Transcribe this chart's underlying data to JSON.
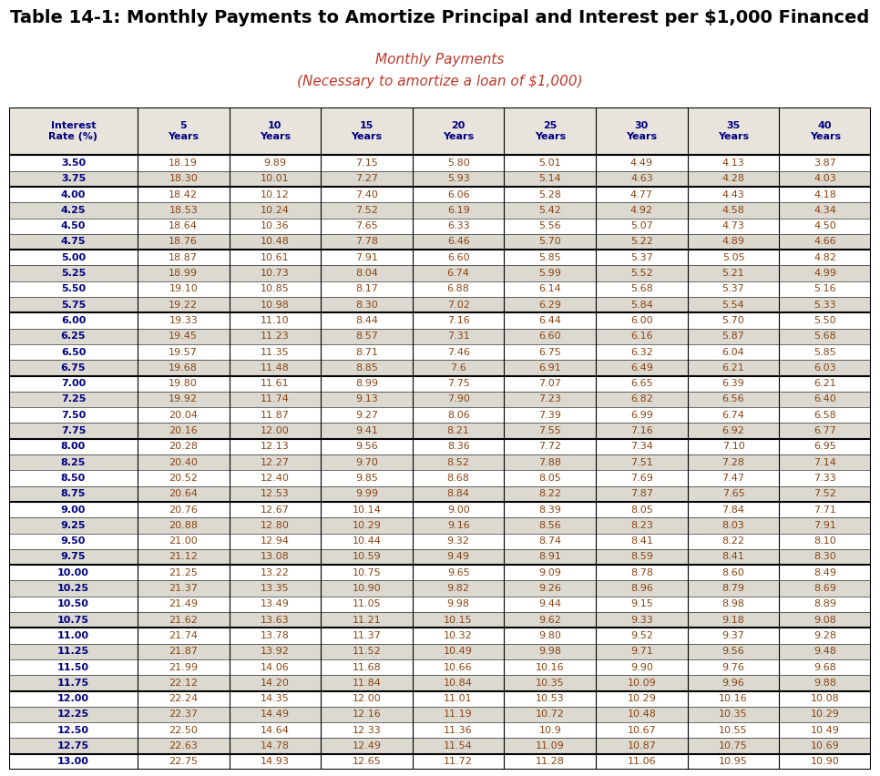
{
  "title": "Table 14-1: Monthly Payments to Amortize Principal and Interest per $1,000 Financed",
  "subtitle1": "Monthly Payments",
  "subtitle2": "(Necessary to amortize a loan of $1,000)",
  "col_headers": [
    "Interest\nRate (%)",
    "5\nYears",
    "10\nYears",
    "15\nYears",
    "20\nYears",
    "25\nYears",
    "30\nYears",
    "35\nYears",
    "40\nYears"
  ],
  "rows": [
    [
      "3.50",
      "18.19",
      "9.89",
      "7.15",
      "5.80",
      "5.01",
      "4.49",
      "4.13",
      "3.87"
    ],
    [
      "3.75",
      "18.30",
      "10.01",
      "7.27",
      "5.93",
      "5.14",
      "4.63",
      "4.28",
      "4.03"
    ],
    [
      "4.00",
      "18.42",
      "10.12",
      "7.40",
      "6.06",
      "5.28",
      "4.77",
      "4.43",
      "4.18"
    ],
    [
      "4.25",
      "18.53",
      "10.24",
      "7.52",
      "6.19",
      "5.42",
      "4.92",
      "4.58",
      "4.34"
    ],
    [
      "4.50",
      "18.64",
      "10.36",
      "7.65",
      "6.33",
      "5.56",
      "5.07",
      "4.73",
      "4.50"
    ],
    [
      "4.75",
      "18.76",
      "10.48",
      "7.78",
      "6.46",
      "5.70",
      "5.22",
      "4.89",
      "4.66"
    ],
    [
      "5.00",
      "18.87",
      "10.61",
      "7.91",
      "6.60",
      "5.85",
      "5.37",
      "5.05",
      "4.82"
    ],
    [
      "5.25",
      "18.99",
      "10.73",
      "8.04",
      "6.74",
      "5.99",
      "5.52",
      "5.21",
      "4.99"
    ],
    [
      "5.50",
      "19.10",
      "10.85",
      "8.17",
      "6.88",
      "6.14",
      "5.68",
      "5.37",
      "5.16"
    ],
    [
      "5.75",
      "19.22",
      "10.98",
      "8.30",
      "7.02",
      "6.29",
      "5.84",
      "5.54",
      "5.33"
    ],
    [
      "6.00",
      "19.33",
      "11.10",
      "8.44",
      "7.16",
      "6.44",
      "6.00",
      "5.70",
      "5.50"
    ],
    [
      "6.25",
      "19.45",
      "11.23",
      "8.57",
      "7.31",
      "6.60",
      "6.16",
      "5.87",
      "5.68"
    ],
    [
      "6.50",
      "19.57",
      "11.35",
      "8.71",
      "7.46",
      "6.75",
      "6.32",
      "6.04",
      "5.85"
    ],
    [
      "6.75",
      "19.68",
      "11.48",
      "8.85",
      "7.6",
      "6.91",
      "6.49",
      "6.21",
      "6.03"
    ],
    [
      "7.00",
      "19.80",
      "11.61",
      "8.99",
      "7.75",
      "7.07",
      "6.65",
      "6.39",
      "6.21"
    ],
    [
      "7.25",
      "19.92",
      "11.74",
      "9.13",
      "7.90",
      "7.23",
      "6.82",
      "6.56",
      "6.40"
    ],
    [
      "7.50",
      "20.04",
      "11.87",
      "9.27",
      "8.06",
      "7.39",
      "6.99",
      "6.74",
      "6.58"
    ],
    [
      "7.75",
      "20.16",
      "12.00",
      "9.41",
      "8.21",
      "7.55",
      "7.16",
      "6.92",
      "6.77"
    ],
    [
      "8.00",
      "20.28",
      "12.13",
      "9.56",
      "8.36",
      "7.72",
      "7.34",
      "7.10",
      "6.95"
    ],
    [
      "8.25",
      "20.40",
      "12.27",
      "9.70",
      "8.52",
      "7.88",
      "7.51",
      "7.28",
      "7.14"
    ],
    [
      "8.50",
      "20.52",
      "12.40",
      "9.85",
      "8.68",
      "8.05",
      "7.69",
      "7.47",
      "7.33"
    ],
    [
      "8.75",
      "20.64",
      "12.53",
      "9.99",
      "8.84",
      "8.22",
      "7.87",
      "7.65",
      "7.52"
    ],
    [
      "9.00",
      "20.76",
      "12.67",
      "10.14",
      "9.00",
      "8.39",
      "8.05",
      "7.84",
      "7.71"
    ],
    [
      "9.25",
      "20.88",
      "12.80",
      "10.29",
      "9.16",
      "8.56",
      "8.23",
      "8.03",
      "7.91"
    ],
    [
      "9.50",
      "21.00",
      "12.94",
      "10.44",
      "9.32",
      "8.74",
      "8.41",
      "8.22",
      "8.10"
    ],
    [
      "9.75",
      "21.12",
      "13.08",
      "10.59",
      "9.49",
      "8.91",
      "8.59",
      "8.41",
      "8.30"
    ],
    [
      "10.00",
      "21.25",
      "13.22",
      "10.75",
      "9.65",
      "9.09",
      "8.78",
      "8.60",
      "8.49"
    ],
    [
      "10.25",
      "21.37",
      "13.35",
      "10.90",
      "9.82",
      "9.26",
      "8.96",
      "8.79",
      "8.69"
    ],
    [
      "10.50",
      "21.49",
      "13.49",
      "11.05",
      "9.98",
      "9.44",
      "9.15",
      "8.98",
      "8.89"
    ],
    [
      "10.75",
      "21.62",
      "13.63",
      "11.21",
      "10.15",
      "9.62",
      "9.33",
      "9.18",
      "9.08"
    ],
    [
      "11.00",
      "21.74",
      "13.78",
      "11.37",
      "10.32",
      "9.80",
      "9.52",
      "9.37",
      "9.28"
    ],
    [
      "11.25",
      "21.87",
      "13.92",
      "11.52",
      "10.49",
      "9.98",
      "9.71",
      "9.56",
      "9.48"
    ],
    [
      "11.50",
      "21.99",
      "14.06",
      "11.68",
      "10.66",
      "10.16",
      "9.90",
      "9.76",
      "9.68"
    ],
    [
      "11.75",
      "22.12",
      "14.20",
      "11.84",
      "10.84",
      "10.35",
      "10.09",
      "9.96",
      "9.88"
    ],
    [
      "12.00",
      "22.24",
      "14.35",
      "12.00",
      "11.01",
      "10.53",
      "10.29",
      "10.16",
      "10.08"
    ],
    [
      "12.25",
      "22.37",
      "14.49",
      "12.16",
      "11.19",
      "10.72",
      "10.48",
      "10.35",
      "10.29"
    ],
    [
      "12.50",
      "22.50",
      "14.64",
      "12.33",
      "11.36",
      "10.9",
      "10.67",
      "10.55",
      "10.49"
    ],
    [
      "12.75",
      "22.63",
      "14.78",
      "12.49",
      "11.54",
      "11.09",
      "10.87",
      "10.75",
      "10.69"
    ],
    [
      "13.00",
      "22.75",
      "14.93",
      "12.65",
      "11.72",
      "11.28",
      "11.06",
      "10.95",
      "10.90"
    ]
  ],
  "group_starts": [
    0,
    2,
    6,
    10,
    14,
    18,
    22,
    26,
    30,
    34,
    38
  ],
  "title_color": "#000000",
  "subtitle_color": "#c0392b",
  "header_text_color": "#000080",
  "data_col0_color": "#000080",
  "data_text_color": "#8B4513",
  "row_bg_light": "#ffffff",
  "row_bg_dark": "#dcd9d0",
  "header_bg": "#e8e4dc",
  "border_color": "#000000"
}
